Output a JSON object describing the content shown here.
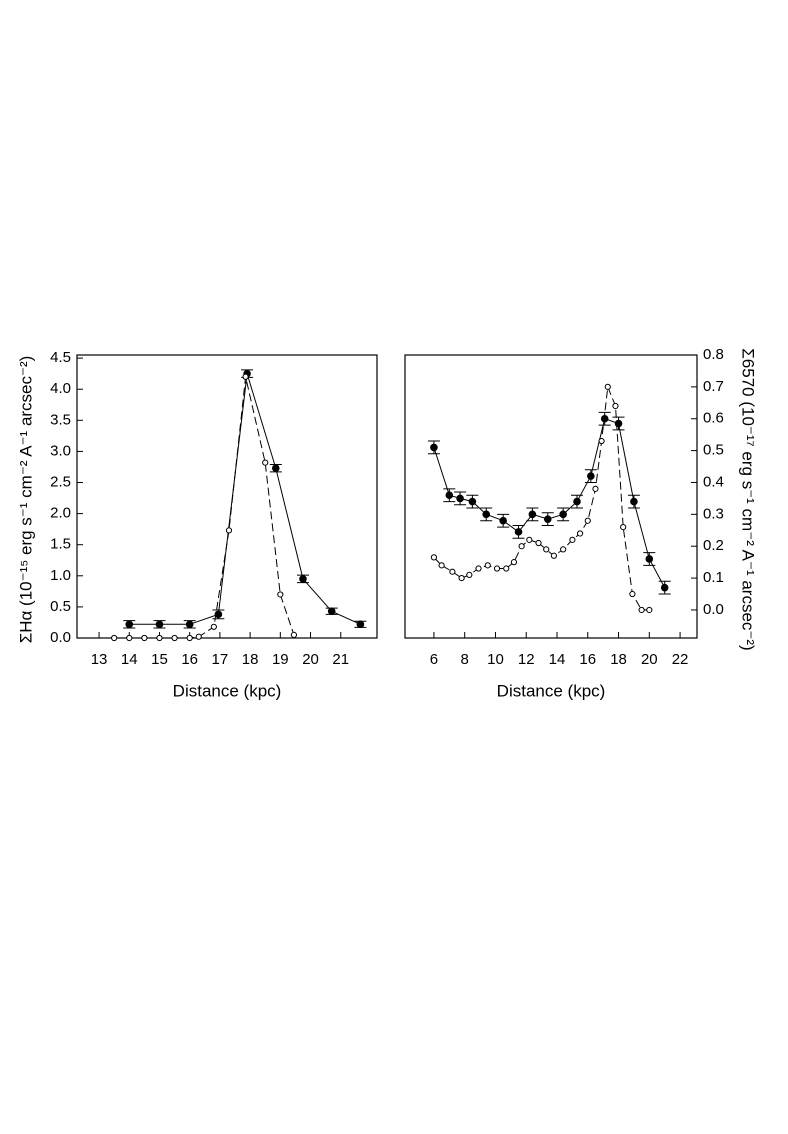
{
  "chart_data": [
    {
      "type": "line",
      "x_label": "Distance  (kpc)",
      "y_label": "ΣHα (10⁻¹⁵ erg s⁻¹ cm⁻² A⁻¹ arcsec⁻²)",
      "y_axis_side": "left",
      "xlim": [
        12.27,
        22.2
      ],
      "ylim": [
        0,
        4.55
      ],
      "xticks": [
        13,
        14,
        15,
        16,
        17,
        18,
        19,
        20,
        21
      ],
      "yticks": [
        {
          "value": 0,
          "label": "0.0"
        },
        0.5,
        {
          "value": 1,
          "label": "1.0"
        },
        1.5,
        {
          "value": 2,
          "label": "2.0"
        },
        2.5,
        {
          "value": 3,
          "label": "3.0"
        },
        3.5,
        {
          "value": 4,
          "label": "4.0"
        },
        4.5
      ],
      "series": [
        {
          "marker": "filled",
          "dash": "solid",
          "color": "#000000",
          "x": [
            14.0,
            15.0,
            16.0,
            16.95,
            17.9,
            18.85,
            19.75,
            20.7,
            21.65
          ],
          "values": [
            0.22,
            0.22,
            0.22,
            0.38,
            4.25,
            2.73,
            0.95,
            0.43,
            0.22
          ],
          "errors": [
            0.06,
            0.06,
            0.06,
            0.07,
            0.06,
            0.06,
            0.06,
            0.05,
            0.05
          ]
        },
        {
          "marker": "open",
          "dash": "dashed",
          "color": "#000000",
          "x": [
            13.5,
            14.0,
            14.5,
            15.0,
            15.5,
            16.0,
            16.3,
            16.8,
            17.3,
            17.85,
            18.5,
            19.0,
            19.45
          ],
          "values": [
            0.0,
            0.0,
            0.0,
            0.0,
            0.0,
            0.0,
            0.02,
            0.18,
            1.73,
            4.2,
            2.82,
            0.7,
            0.05
          ]
        }
      ]
    },
    {
      "type": "line",
      "x_label": "Distance (kpc)",
      "y_label": "Σ6570 (10⁻¹⁷ erg s⁻¹ cm⁻² A⁻¹ arcsec⁻²)",
      "y_axis_side": "right",
      "xlim": [
        4.12,
        23.1
      ],
      "ylim": [
        -0.088,
        0.8
      ],
      "xticks": [
        6,
        8,
        10,
        12,
        14,
        16,
        18,
        20,
        22
      ],
      "yticks": [
        {
          "value": 0,
          "label": "0.0"
        },
        0.1,
        0.2,
        0.3,
        0.4,
        0.5,
        0.6,
        0.7,
        0.8
      ],
      "series": [
        {
          "marker": "filled",
          "dash": "solid",
          "color": "#000000",
          "x": [
            6,
            7,
            7.7,
            8.5,
            9.4,
            10.5,
            11.5,
            12.4,
            13.4,
            14.4,
            15.3,
            16.2,
            17.1,
            18,
            19,
            20,
            21
          ],
          "values": [
            0.51,
            0.36,
            0.35,
            0.34,
            0.3,
            0.28,
            0.245,
            0.3,
            0.285,
            0.3,
            0.34,
            0.42,
            0.6,
            0.585,
            0.34,
            0.16,
            0.07
          ],
          "errors": [
            0.02,
            0.02,
            0.02,
            0.02,
            0.02,
            0.02,
            0.02,
            0.02,
            0.02,
            0.02,
            0.02,
            0.02,
            0.02,
            0.02,
            0.02,
            0.02,
            0.02
          ]
        },
        {
          "marker": "open",
          "dash": "dashed",
          "color": "#000000",
          "x": [
            6,
            6.5,
            7.2,
            7.8,
            8.3,
            8.9,
            9.5,
            10.1,
            10.7,
            11.2,
            11.7,
            12.2,
            12.8,
            13.3,
            13.8,
            14.4,
            15,
            15.5,
            16,
            16.5,
            16.9,
            17.3,
            17.8,
            18.3,
            18.9,
            19.5,
            20
          ],
          "values": [
            0.165,
            0.14,
            0.12,
            0.1,
            0.11,
            0.13,
            0.14,
            0.13,
            0.13,
            0.15,
            0.2,
            0.22,
            0.21,
            0.19,
            0.17,
            0.19,
            0.22,
            0.24,
            0.28,
            0.38,
            0.53,
            0.7,
            0.64,
            0.26,
            0.05,
            0.0,
            0.0
          ]
        }
      ]
    }
  ]
}
